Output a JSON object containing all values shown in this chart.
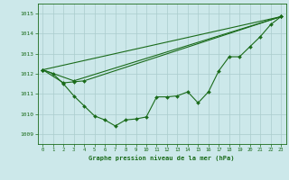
{
  "background_color": "#cce8ea",
  "grid_color": "#aacccc",
  "line_color": "#1a6b1a",
  "xlabel": "Graphe pression niveau de la mer (hPa)",
  "ylim": [
    1008.5,
    1015.5
  ],
  "xlim": [
    -0.5,
    23.5
  ],
  "yticks": [
    1009,
    1010,
    1011,
    1012,
    1013,
    1014,
    1015
  ],
  "xticks": [
    0,
    1,
    2,
    3,
    4,
    5,
    6,
    7,
    8,
    9,
    10,
    11,
    12,
    13,
    14,
    15,
    16,
    17,
    18,
    19,
    20,
    21,
    22,
    23
  ],
  "series_main": [
    1012.2,
    1012.0,
    1011.5,
    1010.9,
    1010.4,
    1009.9,
    1009.7,
    1009.4,
    1009.7,
    1009.75,
    1009.85,
    1010.85,
    1010.85,
    1010.9,
    1011.1,
    1010.55,
    1011.1,
    1012.15,
    1012.85,
    1012.85,
    1013.35,
    1013.85,
    1014.45,
    1014.85
  ],
  "line2_x": [
    0,
    23
  ],
  "line2_y": [
    1012.2,
    1014.85
  ],
  "line3_x": [
    0,
    3,
    23
  ],
  "line3_y": [
    1012.2,
    1011.65,
    1014.85
  ],
  "line4_x": [
    0,
    2,
    3,
    4,
    23
  ],
  "line4_y": [
    1012.2,
    1011.55,
    1011.6,
    1011.65,
    1014.85
  ]
}
